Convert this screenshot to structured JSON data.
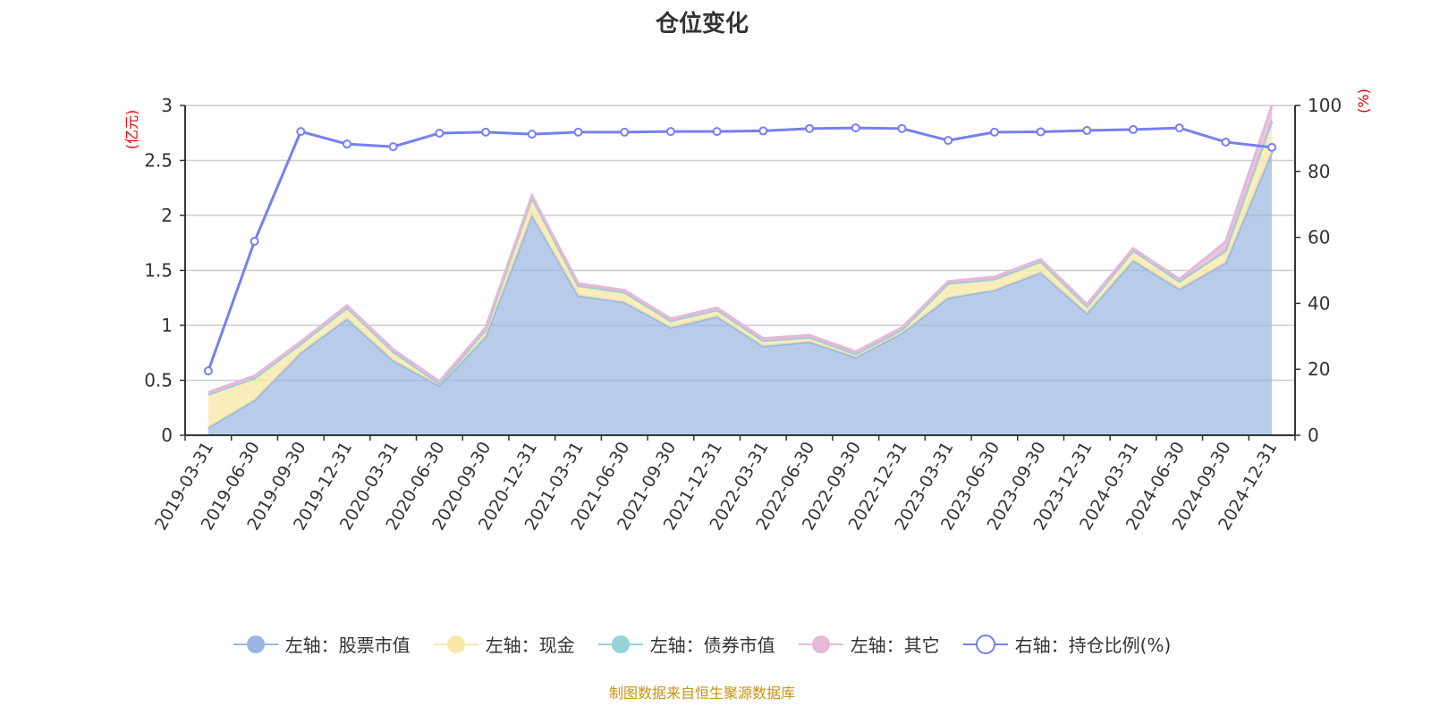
{
  "chart_data": {
    "type": "area",
    "title": "仓位变化",
    "categories": [
      "2019-03-31",
      "2019-06-30",
      "2019-09-30",
      "2019-12-31",
      "2020-03-31",
      "2020-06-30",
      "2020-09-30",
      "2020-12-31",
      "2021-03-31",
      "2021-06-30",
      "2021-09-30",
      "2021-12-31",
      "2022-03-31",
      "2022-06-30",
      "2022-09-30",
      "2022-12-31",
      "2023-03-31",
      "2023-06-30",
      "2023-09-30",
      "2023-12-31",
      "2024-03-31",
      "2024-06-30",
      "2024-09-30",
      "2024-12-31"
    ],
    "y_left": {
      "label": "(亿元)",
      "range": [
        0,
        3
      ],
      "ticks": [
        "0",
        "0.5",
        "1",
        "1.5",
        "2",
        "2.5",
        "3"
      ]
    },
    "y_right": {
      "label": "(%)",
      "range": [
        0,
        100
      ],
      "ticks": [
        "0",
        "20",
        "40",
        "60",
        "80",
        "100"
      ]
    },
    "grid": true,
    "legend_position": "bottom",
    "stacked": true,
    "series": [
      {
        "name": "左轴：股票市值",
        "axis": "left",
        "color": "#9ab5e0",
        "values": [
          0.07,
          0.32,
          0.75,
          1.06,
          0.68,
          0.45,
          0.9,
          2.0,
          1.27,
          1.21,
          0.98,
          1.08,
          0.81,
          0.85,
          0.71,
          0.93,
          1.25,
          1.32,
          1.48,
          1.11,
          1.59,
          1.33,
          1.57,
          2.58
        ]
      },
      {
        "name": "左轴：现金",
        "axis": "left",
        "color": "#f8e8a8",
        "values": [
          0.3,
          0.2,
          0.08,
          0.1,
          0.08,
          0.02,
          0.06,
          0.16,
          0.09,
          0.09,
          0.06,
          0.06,
          0.05,
          0.04,
          0.03,
          0.03,
          0.13,
          0.1,
          0.1,
          0.06,
          0.09,
          0.07,
          0.11,
          0.28
        ]
      },
      {
        "name": "左轴：债券市值",
        "axis": "left",
        "color": "#96d2d6",
        "values": [
          0,
          0,
          0,
          0,
          0,
          0,
          0,
          0,
          0,
          0,
          0,
          0,
          0,
          0,
          0,
          0,
          0,
          0,
          0,
          0,
          0,
          0,
          0,
          0
        ]
      },
      {
        "name": "左轴：其它",
        "axis": "left",
        "color": "#e6b8d8",
        "values": [
          0.02,
          0.02,
          0.02,
          0.02,
          0.02,
          0.02,
          0.02,
          0.02,
          0.02,
          0.02,
          0.02,
          0.02,
          0.02,
          0.02,
          0.02,
          0.02,
          0.02,
          0.02,
          0.02,
          0.02,
          0.02,
          0.02,
          0.08,
          0.14
        ]
      },
      {
        "name": "右轴：持仓比例(%)",
        "axis": "right",
        "color": "#7580f2",
        "values": [
          19.5,
          58.8,
          92.1,
          88.3,
          87.5,
          91.6,
          91.9,
          91.3,
          91.9,
          91.9,
          92.1,
          92.1,
          92.3,
          93.0,
          93.2,
          93.0,
          89.4,
          91.9,
          92.0,
          92.4,
          92.7,
          93.2,
          88.9,
          87.3
        ]
      }
    ]
  },
  "footer": "制图数据来自恒生聚源数据库"
}
